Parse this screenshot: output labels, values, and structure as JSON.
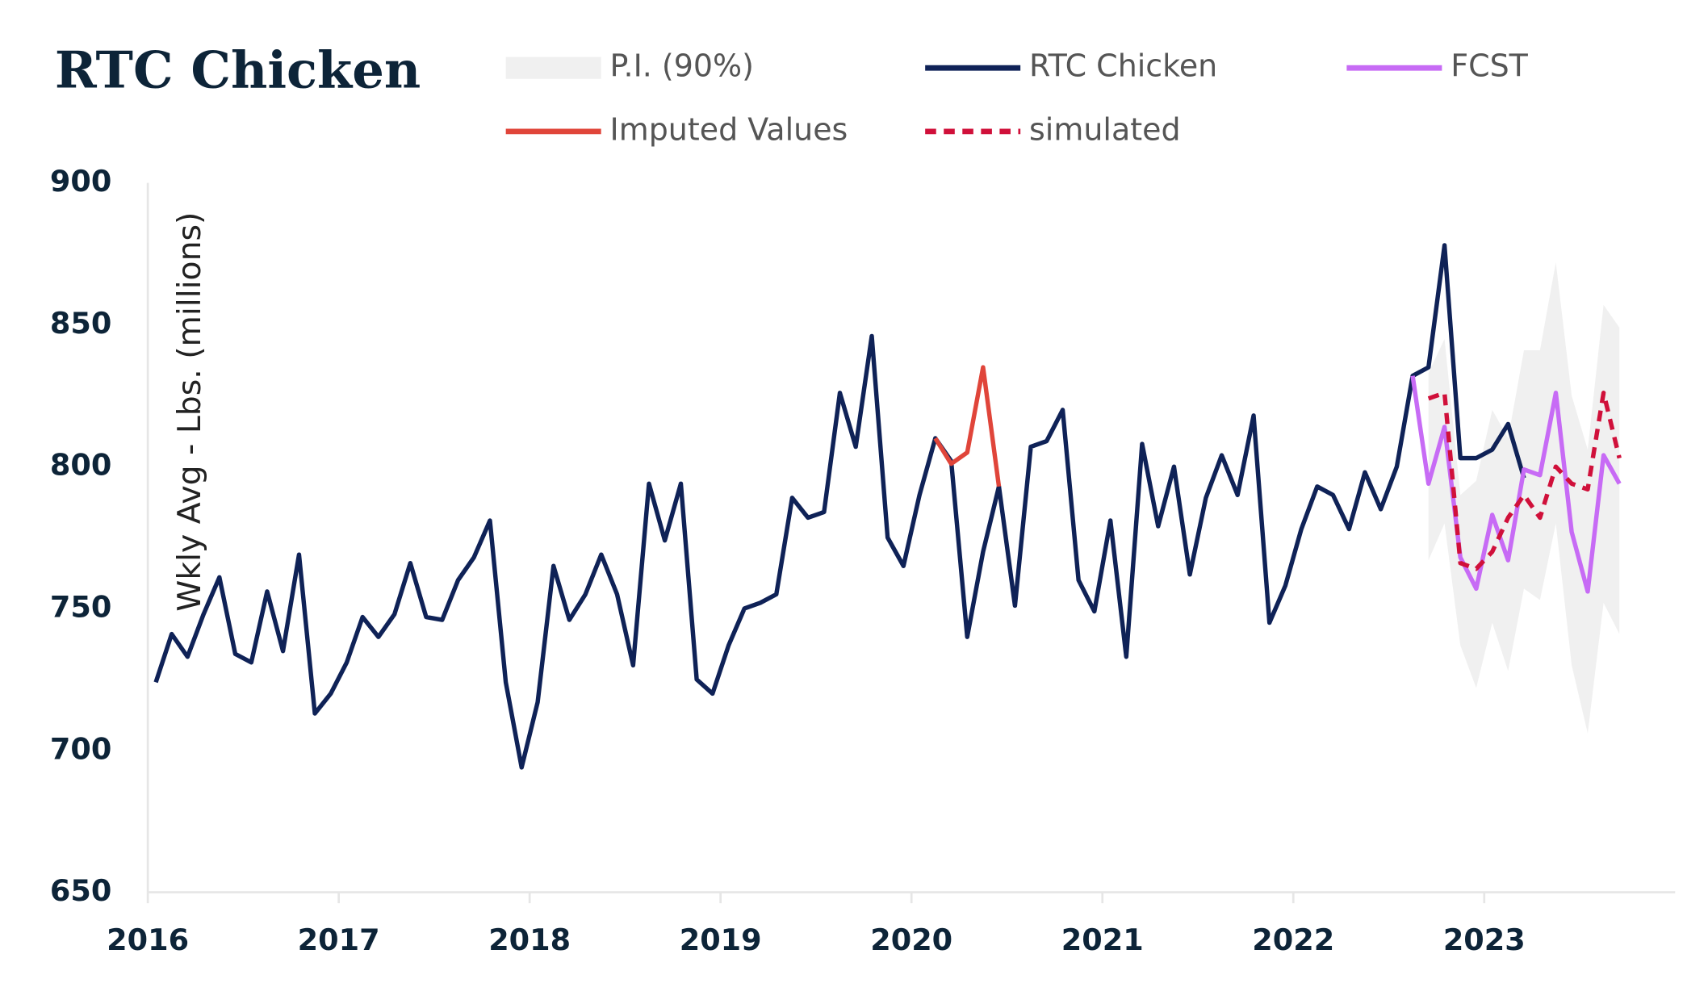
{
  "chart_data": {
    "type": "line",
    "title": "RTC Chicken",
    "y_label": "Wkly Avg - Lbs. (millions)",
    "x": [
      2016.042,
      2016.125,
      2016.208,
      2016.292,
      2016.375,
      2016.458,
      2016.542,
      2016.625,
      2016.708,
      2016.792,
      2016.875,
      2016.958,
      2017.042,
      2017.125,
      2017.208,
      2017.292,
      2017.375,
      2017.458,
      2017.542,
      2017.625,
      2017.708,
      2017.792,
      2017.875,
      2017.958,
      2018.042,
      2018.125,
      2018.208,
      2018.292,
      2018.375,
      2018.458,
      2018.542,
      2018.625,
      2018.708,
      2018.792,
      2018.875,
      2018.958,
      2019.042,
      2019.125,
      2019.208,
      2019.292,
      2019.375,
      2019.458,
      2019.542,
      2019.625,
      2019.708,
      2019.792,
      2019.875,
      2019.958,
      2020.042,
      2020.125,
      2020.208,
      2020.292,
      2020.375,
      2020.458,
      2020.542,
      2020.625,
      2020.708,
      2020.792,
      2020.875,
      2020.958,
      2021.042,
      2021.125,
      2021.208,
      2021.292,
      2021.375,
      2021.458,
      2021.542,
      2021.625,
      2021.708,
      2021.792,
      2021.875,
      2021.958,
      2022.042,
      2022.125,
      2022.208,
      2022.292,
      2022.375,
      2022.458,
      2022.542,
      2022.625,
      2022.708,
      2022.792,
      2022.875,
      2022.958,
      2023.042,
      2023.125,
      2023.208,
      2023.292,
      2023.375,
      2023.458,
      2023.542,
      2023.625,
      2023.708
    ],
    "series": [
      {
        "name": "P.I. (90%)",
        "kind": "band",
        "color": "#f0f0f0",
        "upper": [
          null,
          null,
          null,
          null,
          null,
          null,
          null,
          null,
          null,
          null,
          null,
          null,
          null,
          null,
          null,
          null,
          null,
          null,
          null,
          null,
          null,
          null,
          null,
          null,
          null,
          null,
          null,
          null,
          null,
          null,
          null,
          null,
          null,
          null,
          null,
          null,
          null,
          null,
          null,
          null,
          null,
          null,
          null,
          null,
          null,
          null,
          null,
          null,
          null,
          null,
          null,
          null,
          null,
          null,
          null,
          null,
          null,
          null,
          null,
          null,
          null,
          null,
          null,
          null,
          null,
          null,
          null,
          null,
          null,
          null,
          null,
          null,
          null,
          null,
          null,
          null,
          null,
          null,
          null,
          null,
          833,
          845,
          790,
          795,
          820,
          810,
          841,
          841,
          872,
          825,
          806,
          857,
          849
        ],
        "lower": [
          null,
          null,
          null,
          null,
          null,
          null,
          null,
          null,
          null,
          null,
          null,
          null,
          null,
          null,
          null,
          null,
          null,
          null,
          null,
          null,
          null,
          null,
          null,
          null,
          null,
          null,
          null,
          null,
          null,
          null,
          null,
          null,
          null,
          null,
          null,
          null,
          null,
          null,
          null,
          null,
          null,
          null,
          null,
          null,
          null,
          null,
          null,
          null,
          null,
          null,
          null,
          null,
          null,
          null,
          null,
          null,
          null,
          null,
          null,
          null,
          null,
          null,
          null,
          null,
          null,
          null,
          null,
          null,
          null,
          null,
          null,
          null,
          null,
          null,
          null,
          null,
          null,
          null,
          null,
          null,
          767,
          780,
          737,
          722,
          745,
          728,
          757,
          753,
          780,
          730,
          706,
          752,
          741
        ]
      },
      {
        "name": "RTC Chicken",
        "color": "#0f2257",
        "dashed": false,
        "values": [
          724,
          741,
          733,
          748,
          761,
          734,
          731,
          756,
          735,
          769,
          713,
          720,
          731,
          747,
          740,
          748,
          766,
          747,
          746,
          760,
          768,
          781,
          724,
          694,
          717,
          765,
          746,
          755,
          769,
          755,
          730,
          794,
          774,
          794,
          725,
          720,
          737,
          750,
          752,
          755,
          789,
          782,
          784,
          826,
          807,
          846,
          775,
          765,
          790,
          810,
          802,
          740,
          770,
          793,
          751,
          807,
          809,
          820,
          760,
          749,
          781,
          733,
          808,
          779,
          800,
          762,
          789,
          804,
          790,
          818,
          745,
          758,
          778,
          793,
          790,
          778,
          798,
          785,
          800,
          832,
          835,
          878,
          803,
          803,
          806,
          815,
          796,
          null,
          null,
          null,
          null,
          null,
          null
        ]
      },
      {
        "name": "FCST",
        "color": "#c76bf5",
        "dashed": false,
        "values": [
          null,
          null,
          null,
          null,
          null,
          null,
          null,
          null,
          null,
          null,
          null,
          null,
          null,
          null,
          null,
          null,
          null,
          null,
          null,
          null,
          null,
          null,
          null,
          null,
          null,
          null,
          null,
          null,
          null,
          null,
          null,
          null,
          null,
          null,
          null,
          null,
          null,
          null,
          null,
          null,
          null,
          null,
          null,
          null,
          null,
          null,
          null,
          null,
          null,
          null,
          null,
          null,
          null,
          null,
          null,
          null,
          null,
          null,
          null,
          null,
          null,
          null,
          null,
          null,
          null,
          null,
          null,
          null,
          null,
          null,
          null,
          null,
          null,
          null,
          null,
          null,
          null,
          null,
          null,
          832,
          794,
          814,
          768,
          757,
          783,
          767,
          799,
          797,
          826,
          777,
          756,
          804,
          794
        ]
      },
      {
        "name": "Imputed Values",
        "color": "#e0453a",
        "dashed": false,
        "values": [
          null,
          null,
          null,
          null,
          null,
          null,
          null,
          null,
          null,
          null,
          null,
          null,
          null,
          null,
          null,
          null,
          null,
          null,
          null,
          null,
          null,
          null,
          null,
          null,
          null,
          null,
          null,
          null,
          null,
          null,
          null,
          null,
          null,
          null,
          null,
          null,
          null,
          null,
          null,
          null,
          null,
          null,
          null,
          null,
          null,
          null,
          null,
          null,
          null,
          810,
          801,
          805,
          835,
          793,
          null,
          null,
          null,
          null,
          null,
          null,
          null,
          null,
          null,
          null,
          null,
          null,
          null,
          null,
          null,
          null,
          null,
          null,
          null,
          null,
          null,
          null,
          null,
          null,
          null,
          null,
          null,
          null,
          null,
          null,
          null,
          null,
          null,
          null,
          null,
          null,
          null,
          null,
          null
        ]
      },
      {
        "name": "simulated",
        "color": "#d0103a",
        "dashed": true,
        "values": [
          null,
          null,
          null,
          null,
          null,
          null,
          null,
          null,
          null,
          null,
          null,
          null,
          null,
          null,
          null,
          null,
          null,
          null,
          null,
          null,
          null,
          null,
          null,
          null,
          null,
          null,
          null,
          null,
          null,
          null,
          null,
          null,
          null,
          null,
          null,
          null,
          null,
          null,
          null,
          null,
          null,
          null,
          null,
          null,
          null,
          null,
          null,
          null,
          null,
          null,
          null,
          null,
          null,
          null,
          null,
          null,
          null,
          null,
          null,
          null,
          null,
          null,
          null,
          null,
          null,
          null,
          null,
          null,
          null,
          null,
          null,
          null,
          null,
          null,
          null,
          null,
          null,
          null,
          null,
          null,
          824,
          826,
          766,
          764,
          770,
          782,
          790,
          782,
          800,
          794,
          792,
          826,
          803
        ]
      }
    ],
    "xlim": [
      2016,
      2024
    ],
    "xticks": [
      2016,
      2017,
      2018,
      2019,
      2020,
      2021,
      2022,
      2023
    ],
    "ylim": [
      650,
      900
    ],
    "yticks": [
      650,
      700,
      750,
      800,
      850,
      900
    ]
  }
}
